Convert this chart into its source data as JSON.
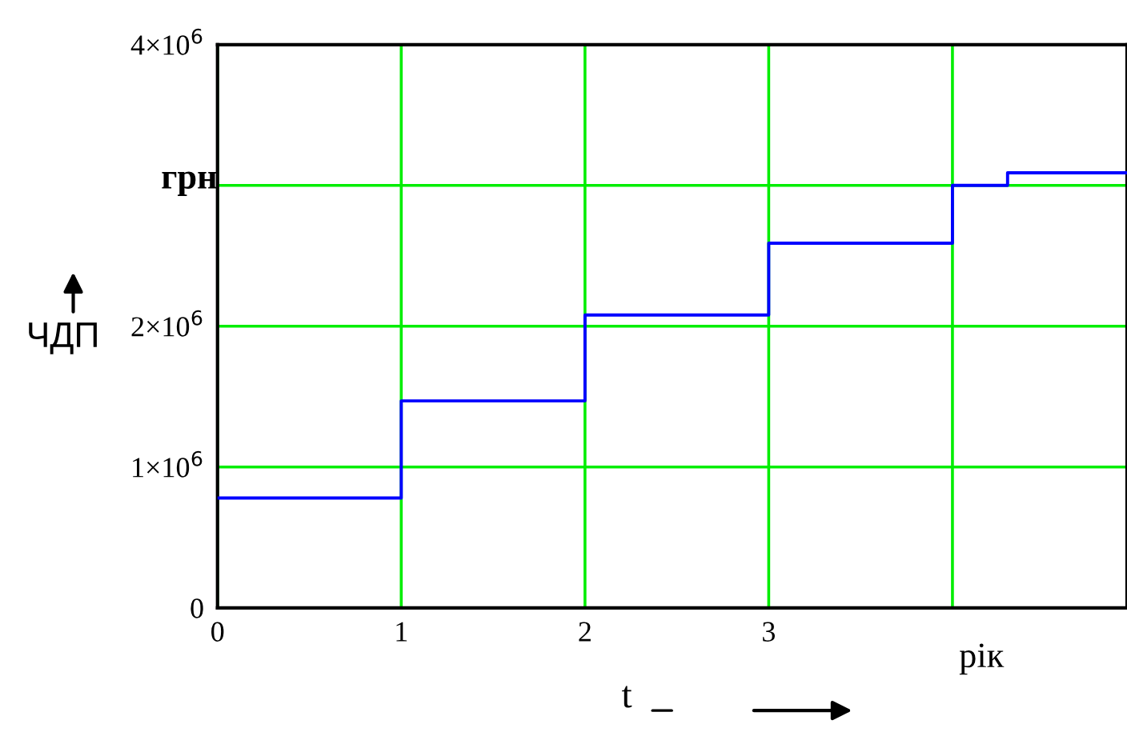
{
  "chart_data": {
    "type": "step",
    "ylabel": "ЧДП",
    "xlabel": "t",
    "annotations": [
      "грн",
      "рік"
    ],
    "series": [
      {
        "color": "#0000ff",
        "x": [
          0,
          1,
          2,
          3,
          4,
          4.3,
          4.95
        ],
        "values": [
          780000,
          1470000,
          2080000,
          2590000,
          3000000,
          3090000,
          3090000
        ]
      }
    ],
    "xlim": [
      0,
      4.95
    ],
    "xticks": [
      0,
      1,
      2,
      3,
      {
        "value": 4,
        "label": null
      }
    ],
    "ylim": [
      0,
      4000000
    ],
    "yticks": [
      0,
      {
        "value": 1000000,
        "label": "1×10$^{6}$"
      },
      {
        "value": 2000000,
        "label": "2×10$^{6}$"
      },
      {
        "value": 3000000,
        "label": null
      },
      {
        "value": 4000000,
        "label": "4×10$^{6}$"
      }
    ],
    "grid": true,
    "line_style": "solid",
    "marker": "none"
  }
}
